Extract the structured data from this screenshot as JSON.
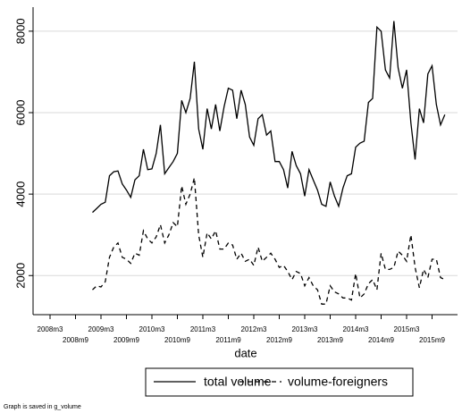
{
  "chart_data": {
    "type": "line",
    "x_label": "date",
    "footnote": "Graph is saved in g_volume",
    "x": [
      "2009m1",
      "2009m2",
      "2009m3",
      "2009m4",
      "2009m5",
      "2009m6",
      "2009m7",
      "2009m8",
      "2009m9",
      "2009m10",
      "2009m11",
      "2009m12",
      "2010m1",
      "2010m2",
      "2010m3",
      "2010m4",
      "2010m5",
      "2010m6",
      "2010m7",
      "2010m8",
      "2010m9",
      "2010m10",
      "2010m11",
      "2010m12",
      "2011m1",
      "2011m2",
      "2011m3",
      "2011m4",
      "2011m5",
      "2011m6",
      "2011m7",
      "2011m8",
      "2011m9",
      "2011m10",
      "2011m11",
      "2011m12",
      "2012m1",
      "2012m2",
      "2012m3",
      "2012m4",
      "2012m5",
      "2012m6",
      "2012m7",
      "2012m8",
      "2012m9",
      "2012m10",
      "2012m11",
      "2012m12",
      "2013m1",
      "2013m2",
      "2013m3",
      "2013m4",
      "2013m5",
      "2013m6",
      "2013m7",
      "2013m8",
      "2013m9",
      "2013m10",
      "2013m11",
      "2013m12",
      "2014m1",
      "2014m2",
      "2014m3",
      "2014m4",
      "2014m5",
      "2014m6",
      "2014m7",
      "2014m8",
      "2014m9",
      "2014m10",
      "2014m11",
      "2014m12",
      "2015m1",
      "2015m2",
      "2015m3",
      "2015m4",
      "2015m5",
      "2015m6",
      "2015m7",
      "2015m8",
      "2015m9",
      "2015m10",
      "2015m11",
      "2015m12"
    ],
    "series": [
      {
        "name": "total volume",
        "color": "#000000",
        "dash": "solid",
        "values": [
          3550,
          3650,
          3750,
          3800,
          4450,
          4550,
          4570,
          4250,
          4100,
          3920,
          4350,
          4450,
          5100,
          4600,
          4620,
          5000,
          5700,
          4500,
          4650,
          4800,
          5000,
          6300,
          6000,
          6350,
          7250,
          5600,
          5100,
          6100,
          5600,
          6200,
          5550,
          6150,
          6600,
          6550,
          5850,
          6550,
          6200,
          5400,
          5200,
          5850,
          5950,
          5450,
          5550,
          4800,
          4800,
          4600,
          4150,
          5050,
          4700,
          4500,
          3950,
          4600,
          4350,
          4100,
          3750,
          3700,
          4300,
          3950,
          3700,
          4150,
          4450,
          4500,
          5150,
          5250,
          5300,
          6250,
          6350,
          8100,
          8000,
          7050,
          6850,
          8250,
          7100,
          6600,
          7050,
          5750,
          4850,
          6100,
          5750,
          6950,
          7150,
          6200,
          5700,
          5950
        ]
      },
      {
        "name": "volume-foreigners",
        "color": "#000000",
        "dash": "dashed",
        "values": [
          1650,
          1750,
          1720,
          1850,
          2450,
          2700,
          2800,
          2450,
          2400,
          2300,
          2550,
          2500,
          3100,
          2900,
          2800,
          2950,
          3250,
          2800,
          3000,
          3300,
          3200,
          4200,
          3750,
          4000,
          4400,
          3000,
          2450,
          3050,
          2900,
          3100,
          2650,
          2650,
          2800,
          2750,
          2400,
          2550,
          2350,
          2400,
          2250,
          2700,
          2350,
          2450,
          2550,
          2400,
          2200,
          2250,
          2100,
          1900,
          2100,
          2050,
          1750,
          1950,
          1750,
          1650,
          1300,
          1300,
          1750,
          1600,
          1550,
          1450,
          1450,
          1400,
          2050,
          1450,
          1550,
          1800,
          1900,
          1650,
          2550,
          2150,
          2150,
          2200,
          2600,
          2500,
          2350,
          3000,
          2200,
          1700,
          2150,
          1950,
          2400,
          2400,
          1950,
          1900
        ]
      }
    ],
    "xlim": [
      "2007m11",
      "2016m3"
    ],
    "xticks": [
      "2008m3",
      "2008m9",
      "2009m3",
      "2009m9",
      "2010m3",
      "2010m9",
      "2011m3",
      "2011m9",
      "2012m3",
      "2012m9",
      "2013m3",
      "2013m9",
      "2014m3",
      "2014m9",
      "2015m3",
      "2015m9"
    ],
    "ylim": [
      1040,
      8590
    ],
    "yticks": [
      2000,
      4000,
      6000,
      8000
    ],
    "grid": true,
    "legend": "bottom"
  }
}
